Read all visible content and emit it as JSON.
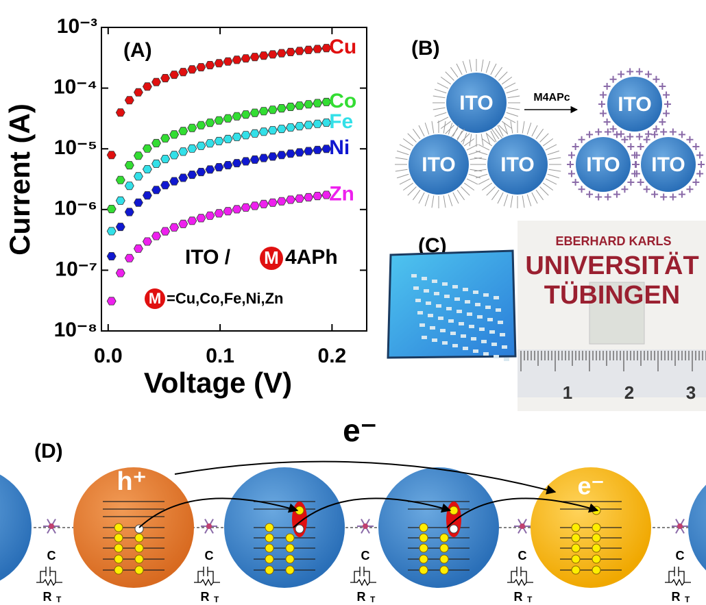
{
  "chart_data": {
    "type": "scatter",
    "panel_label": "(A)",
    "xlabel": "Voltage (V)",
    "ylabel": "Current (A)",
    "x": [
      0.003,
      0.011,
      0.019,
      0.027,
      0.035,
      0.043,
      0.051,
      0.059,
      0.067,
      0.075,
      0.083,
      0.091,
      0.099,
      0.107,
      0.115,
      0.123,
      0.131,
      0.139,
      0.147,
      0.155,
      0.163,
      0.171,
      0.179,
      0.187,
      0.195
    ],
    "series": [
      {
        "name": "Cu",
        "color": "#e01010",
        "values": [
          7.9e-06,
          3.96e-05,
          6.32e-05,
          8.51e-05,
          0.000106,
          0.000126,
          0.000146,
          0.000166,
          0.000184,
          0.000203,
          0.000221,
          0.000239,
          0.000257,
          0.000274,
          0.000292,
          0.000309,
          0.000326,
          0.000343,
          0.000359,
          0.000376,
          0.000393,
          0.000409,
          0.000426,
          0.000441,
          0.000457
        ]
      },
      {
        "name": "Co",
        "color": "#33dd33",
        "values": [
          1.02e-06,
          3.06e-06,
          5.37e-06,
          7.69e-06,
          1.01e-05,
          1.24e-05,
          1.49e-05,
          1.72e-05,
          1.96e-05,
          2.21e-05,
          2.45e-05,
          2.69e-05,
          2.94e-05,
          3.18e-05,
          3.43e-05,
          3.67e-05,
          3.92e-05,
          4.17e-05,
          4.4e-05,
          4.65e-05,
          4.91e-05,
          5.15e-05,
          5.41e-05,
          5.65e-05,
          5.9e-05
        ]
      },
      {
        "name": "Fe",
        "color": "#33e0e8",
        "values": [
          4.4e-07,
          1.4e-06,
          2.46e-06,
          3.52e-06,
          4.61e-06,
          5.68e-06,
          6.8e-06,
          7.88e-06,
          8.98e-06,
          1.01e-05,
          1.12e-05,
          1.23e-05,
          1.34e-05,
          1.45e-05,
          1.57e-05,
          1.68e-05,
          1.79e-05,
          1.91e-05,
          2.02e-05,
          2.13e-05,
          2.25e-05,
          2.36e-05,
          2.47e-05,
          2.58e-05,
          2.7e-05
        ]
      },
      {
        "name": "Ni",
        "color": "#1018d0",
        "values": [
          1.7e-07,
          5.18e-07,
          9.1e-07,
          1.3e-06,
          1.71e-06,
          2.1e-06,
          2.52e-06,
          2.92e-06,
          3.33e-06,
          3.74e-06,
          4.15e-06,
          4.56e-06,
          4.98e-06,
          5.38e-06,
          5.81e-06,
          6.22e-06,
          6.64e-06,
          7.06e-06,
          7.46e-06,
          7.89e-06,
          8.32e-06,
          8.73e-06,
          9.16e-06,
          9.57e-06,
          1e-05
        ]
      },
      {
        "name": "Zn",
        "color": "#ee20ee",
        "values": [
          3.1e-08,
          9e-08,
          1.58e-07,
          2.27e-07,
          2.97e-07,
          3.66e-07,
          4.38e-07,
          5.08e-07,
          5.79e-07,
          6.51e-07,
          7.22e-07,
          7.93e-07,
          8.66e-07,
          9.37e-07,
          1.01e-06,
          1.08e-06,
          1.15e-06,
          1.23e-06,
          1.3e-06,
          1.37e-06,
          1.45e-06,
          1.52e-06,
          1.59e-06,
          1.67e-06,
          1.74e-06
        ]
      }
    ],
    "xlim": [
      -0.006,
      0.231
    ],
    "xticks": [
      {
        "value": 0,
        "label": "0.0"
      },
      0.1,
      0.2
    ],
    "ylim": [
      1e-08,
      0.001
    ],
    "ylog": true,
    "yticks": [
      {
        "value": 1e-08,
        "label": "10⁻⁸"
      },
      {
        "value": 1e-07,
        "label": "10⁻⁷"
      },
      {
        "value": 1e-06,
        "label": "10⁻⁶"
      },
      {
        "value": 1e-05,
        "label": "10⁻⁵"
      },
      {
        "value": 0.0001,
        "label": "10⁻⁴"
      },
      {
        "value": 0.001,
        "label": "10⁻³"
      }
    ],
    "annotation": {
      "prefix": "ITO / ",
      "metal": "M",
      "suffix": "4APh"
    },
    "legend_note": {
      "metal": "M",
      "text": "=Cu,Co,Fe,Ni,Zn"
    }
  },
  "panel_b": {
    "label": "(B)",
    "particle": "ITO",
    "arrow_label": "M4APc"
  },
  "panel_c": {
    "label": "(C)",
    "photo_text": [
      "EBERHARD KARLS",
      "UNIVERSITÄT",
      "TÜBINGEN"
    ],
    "ruler": [
      "1",
      "2",
      "3"
    ]
  },
  "panel_d": {
    "label": "(D)",
    "electron": "e⁻",
    "hole": "h⁺",
    "capacitor": "C",
    "resistor": "R",
    "resistor_sub": "T"
  }
}
